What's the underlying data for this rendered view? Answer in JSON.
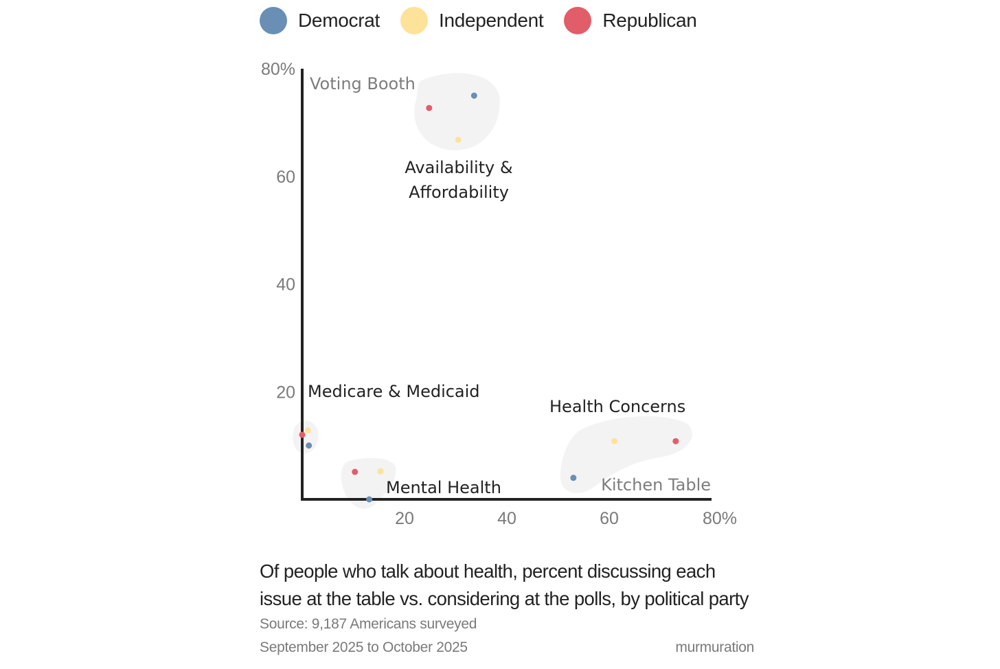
{
  "legend": [
    {
      "label": "Democrat",
      "color": "#6a8fb5"
    },
    {
      "label": "Independent",
      "color": "#fde29a"
    },
    {
      "label": "Republican",
      "color": "#e25d6a"
    }
  ],
  "chart_data": {
    "type": "scatter",
    "xlabel": "Kitchen Table",
    "ylabel": "Voting Booth",
    "xlim": [
      0,
      80
    ],
    "ylim": [
      0,
      80
    ],
    "x_ticks": [
      "20",
      "40",
      "60",
      "80%"
    ],
    "y_ticks": [
      "20",
      "40",
      "60",
      "80%"
    ],
    "series": [
      {
        "name": "Democrat",
        "color": "#6a8fb5",
        "points": [
          {
            "issue": "Availability & Affordability",
            "x": 33.6,
            "y": 75.0
          },
          {
            "issue": "Medicare & Medicaid",
            "x": 1.3,
            "y": 10.0
          },
          {
            "issue": "Mental Health",
            "x": 13.1,
            "y": 0.0
          },
          {
            "issue": "Health Concerns",
            "x": 53.0,
            "y": 4.0
          }
        ]
      },
      {
        "name": "Independent",
        "color": "#fde29a",
        "points": [
          {
            "issue": "Availability & Affordability",
            "x": 30.5,
            "y": 66.8
          },
          {
            "issue": "Medicare & Medicaid",
            "x": 1.1,
            "y": 12.8
          },
          {
            "issue": "Mental Health",
            "x": 15.3,
            "y": 5.2
          },
          {
            "issue": "Health Concerns",
            "x": 61.0,
            "y": 10.8
          }
        ]
      },
      {
        "name": "Republican",
        "color": "#e25d6a",
        "points": [
          {
            "issue": "Availability & Affordability",
            "x": 24.8,
            "y": 72.7
          },
          {
            "issue": "Medicare & Medicaid",
            "x": 0.0,
            "y": 12.0
          },
          {
            "issue": "Mental Health",
            "x": 10.3,
            "y": 5.1
          },
          {
            "issue": "Health Concerns",
            "x": 73.0,
            "y": 10.8
          }
        ]
      }
    ],
    "annotations": [
      "Availability & Affordability",
      "Medicare & Medicaid",
      "Mental Health",
      "Health Concerns"
    ]
  },
  "caption": {
    "title": "Of people who talk about health, percent discussing each issue at the table vs. considering at the polls, by political party",
    "source_line1": "Source: 9,187 Americans surveyed",
    "source_line2": "September 2025 to October 2025",
    "brand": "murmuration"
  }
}
